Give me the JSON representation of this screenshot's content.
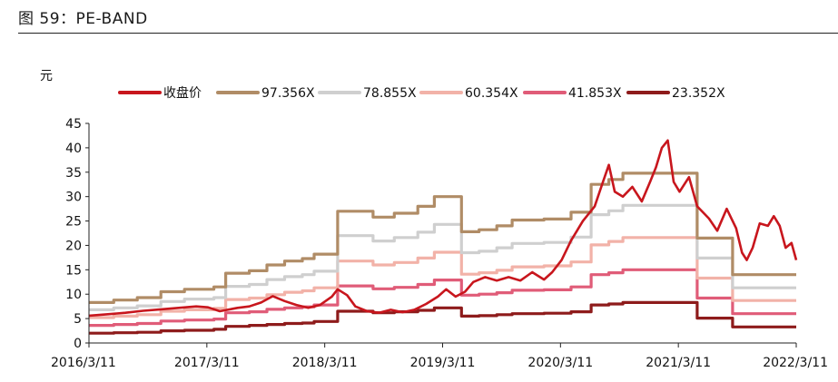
{
  "figure": {
    "title": "图 59：PE-BAND"
  },
  "chart_data": {
    "type": "line",
    "title": "图 59：PE-BAND",
    "ylabel": "元",
    "xlabel": "",
    "ylim": [
      0,
      45
    ],
    "yticks": [
      "0",
      "5",
      "10",
      "15",
      "20",
      "25",
      "30",
      "35",
      "40",
      "45"
    ],
    "xticks": [
      "2016/3/11",
      "2017/3/11",
      "2018/3/11",
      "2019/3/11",
      "2020/3/11",
      "2021/3/11",
      "2022/3/11"
    ],
    "xlim_years": [
      2016.19,
      2022.19
    ],
    "grid": false,
    "legend_position": "top",
    "series": [
      {
        "name": "收盘价",
        "color": "#c8161d",
        "points": [
          [
            2016.19,
            5.6
          ],
          [
            2016.35,
            5.9
          ],
          [
            2016.5,
            6.2
          ],
          [
            2016.65,
            6.6
          ],
          [
            2016.8,
            6.9
          ],
          [
            2016.95,
            7.2
          ],
          [
            2017.1,
            7.5
          ],
          [
            2017.2,
            7.3
          ],
          [
            2017.3,
            6.5
          ],
          [
            2017.45,
            7.2
          ],
          [
            2017.55,
            7.5
          ],
          [
            2017.65,
            8.3
          ],
          [
            2017.75,
            9.6
          ],
          [
            2017.85,
            8.6
          ],
          [
            2017.95,
            7.8
          ],
          [
            2018.05,
            7.2
          ],
          [
            2018.15,
            7.8
          ],
          [
            2018.25,
            9.5
          ],
          [
            2018.3,
            11.0
          ],
          [
            2018.38,
            9.8
          ],
          [
            2018.45,
            7.5
          ],
          [
            2018.55,
            6.5
          ],
          [
            2018.65,
            6.2
          ],
          [
            2018.75,
            6.8
          ],
          [
            2018.85,
            6.3
          ],
          [
            2018.95,
            6.8
          ],
          [
            2019.05,
            8.0
          ],
          [
            2019.15,
            9.5
          ],
          [
            2019.22,
            11.0
          ],
          [
            2019.3,
            9.5
          ],
          [
            2019.38,
            10.5
          ],
          [
            2019.45,
            12.5
          ],
          [
            2019.55,
            13.5
          ],
          [
            2019.65,
            12.8
          ],
          [
            2019.75,
            13.5
          ],
          [
            2019.85,
            12.8
          ],
          [
            2019.95,
            14.5
          ],
          [
            2020.05,
            13.0
          ],
          [
            2020.12,
            14.5
          ],
          [
            2020.2,
            17.0
          ],
          [
            2020.28,
            21.0
          ],
          [
            2020.38,
            25.0
          ],
          [
            2020.48,
            28.0
          ],
          [
            2020.55,
            33.0
          ],
          [
            2020.6,
            36.5
          ],
          [
            2020.65,
            31.0
          ],
          [
            2020.72,
            30.0
          ],
          [
            2020.8,
            32.0
          ],
          [
            2020.88,
            29.0
          ],
          [
            2020.95,
            33.0
          ],
          [
            2021.0,
            36.0
          ],
          [
            2021.05,
            40.0
          ],
          [
            2021.1,
            41.5
          ],
          [
            2021.15,
            33.0
          ],
          [
            2021.2,
            31.0
          ],
          [
            2021.28,
            34.0
          ],
          [
            2021.35,
            28.0
          ],
          [
            2021.45,
            25.5
          ],
          [
            2021.52,
            23.0
          ],
          [
            2021.6,
            27.5
          ],
          [
            2021.68,
            23.5
          ],
          [
            2021.73,
            18.5
          ],
          [
            2021.77,
            17.0
          ],
          [
            2021.82,
            19.5
          ],
          [
            2021.88,
            24.5
          ],
          [
            2021.95,
            24.0
          ],
          [
            2022.0,
            26.0
          ],
          [
            2022.05,
            24.0
          ],
          [
            2022.1,
            19.5
          ],
          [
            2022.15,
            20.5
          ],
          [
            2022.19,
            17.0
          ]
        ]
      },
      {
        "name": "97.356X",
        "color": "#b08c66",
        "steps": [
          [
            2016.19,
            8.3
          ],
          [
            2016.4,
            8.8
          ],
          [
            2016.6,
            9.3
          ],
          [
            2016.8,
            10.5
          ],
          [
            2017.0,
            11.0
          ],
          [
            2017.25,
            11.5
          ],
          [
            2017.35,
            14.3
          ],
          [
            2017.55,
            14.8
          ],
          [
            2017.7,
            16.0
          ],
          [
            2017.85,
            16.8
          ],
          [
            2018.0,
            17.3
          ],
          [
            2018.1,
            18.2
          ],
          [
            2018.3,
            27.0
          ],
          [
            2018.6,
            25.8
          ],
          [
            2018.78,
            26.6
          ],
          [
            2018.98,
            28.0
          ],
          [
            2019.12,
            30.0
          ],
          [
            2019.35,
            22.8
          ],
          [
            2019.5,
            23.2
          ],
          [
            2019.65,
            24.0
          ],
          [
            2019.78,
            25.2
          ],
          [
            2020.05,
            25.4
          ],
          [
            2020.28,
            26.8
          ],
          [
            2020.45,
            32.5
          ],
          [
            2020.6,
            33.5
          ],
          [
            2020.72,
            34.8
          ],
          [
            2021.35,
            21.5
          ],
          [
            2021.65,
            14.0
          ]
        ],
        "end": 2022.19
      },
      {
        "name": "78.855X",
        "color": "#cfcfcf",
        "steps": [
          [
            2016.19,
            6.8
          ],
          [
            2016.4,
            7.2
          ],
          [
            2016.6,
            7.6
          ],
          [
            2016.8,
            8.5
          ],
          [
            2017.0,
            9.0
          ],
          [
            2017.25,
            9.3
          ],
          [
            2017.35,
            11.6
          ],
          [
            2017.55,
            12.0
          ],
          [
            2017.7,
            13.0
          ],
          [
            2017.85,
            13.6
          ],
          [
            2018.0,
            14.0
          ],
          [
            2018.1,
            14.7
          ],
          [
            2018.3,
            22.0
          ],
          [
            2018.6,
            20.9
          ],
          [
            2018.78,
            21.6
          ],
          [
            2018.98,
            22.7
          ],
          [
            2019.12,
            24.3
          ],
          [
            2019.35,
            18.5
          ],
          [
            2019.5,
            18.8
          ],
          [
            2019.65,
            19.5
          ],
          [
            2019.78,
            20.4
          ],
          [
            2020.05,
            20.6
          ],
          [
            2020.28,
            21.7
          ],
          [
            2020.45,
            26.3
          ],
          [
            2020.6,
            27.1
          ],
          [
            2020.72,
            28.2
          ],
          [
            2021.35,
            17.4
          ],
          [
            2021.65,
            11.3
          ]
        ],
        "end": 2022.19
      },
      {
        "name": "60.354X",
        "color": "#f2b2a8",
        "steps": [
          [
            2016.19,
            5.2
          ],
          [
            2016.4,
            5.5
          ],
          [
            2016.6,
            5.8
          ],
          [
            2016.8,
            6.5
          ],
          [
            2017.0,
            6.8
          ],
          [
            2017.25,
            7.1
          ],
          [
            2017.35,
            8.9
          ],
          [
            2017.55,
            9.2
          ],
          [
            2017.7,
            9.9
          ],
          [
            2017.85,
            10.4
          ],
          [
            2018.0,
            10.7
          ],
          [
            2018.1,
            11.3
          ],
          [
            2018.3,
            16.8
          ],
          [
            2018.6,
            16.0
          ],
          [
            2018.78,
            16.5
          ],
          [
            2018.98,
            17.4
          ],
          [
            2019.12,
            18.6
          ],
          [
            2019.35,
            14.1
          ],
          [
            2019.5,
            14.4
          ],
          [
            2019.65,
            14.9
          ],
          [
            2019.78,
            15.6
          ],
          [
            2020.05,
            15.8
          ],
          [
            2020.28,
            16.6
          ],
          [
            2020.45,
            20.1
          ],
          [
            2020.6,
            20.8
          ],
          [
            2020.72,
            21.6
          ],
          [
            2021.35,
            13.3
          ],
          [
            2021.65,
            8.7
          ]
        ],
        "end": 2022.19
      },
      {
        "name": "41.853X",
        "color": "#e05c78",
        "steps": [
          [
            2016.19,
            3.6
          ],
          [
            2016.4,
            3.8
          ],
          [
            2016.6,
            4.0
          ],
          [
            2016.8,
            4.5
          ],
          [
            2017.0,
            4.7
          ],
          [
            2017.25,
            4.9
          ],
          [
            2017.35,
            6.2
          ],
          [
            2017.55,
            6.4
          ],
          [
            2017.7,
            6.9
          ],
          [
            2017.85,
            7.2
          ],
          [
            2018.0,
            7.4
          ],
          [
            2018.1,
            7.8
          ],
          [
            2018.3,
            11.7
          ],
          [
            2018.6,
            11.1
          ],
          [
            2018.78,
            11.4
          ],
          [
            2018.98,
            12.0
          ],
          [
            2019.12,
            12.9
          ],
          [
            2019.35,
            9.8
          ],
          [
            2019.5,
            10.0
          ],
          [
            2019.65,
            10.3
          ],
          [
            2019.78,
            10.8
          ],
          [
            2020.05,
            10.9
          ],
          [
            2020.28,
            11.5
          ],
          [
            2020.45,
            14.0
          ],
          [
            2020.6,
            14.4
          ],
          [
            2020.72,
            15.0
          ],
          [
            2021.35,
            9.2
          ],
          [
            2021.65,
            6.0
          ]
        ],
        "end": 2022.19
      },
      {
        "name": "23.352X",
        "color": "#8e1b1b",
        "steps": [
          [
            2016.19,
            2.0
          ],
          [
            2016.4,
            2.1
          ],
          [
            2016.6,
            2.2
          ],
          [
            2016.8,
            2.5
          ],
          [
            2017.0,
            2.6
          ],
          [
            2017.25,
            2.8
          ],
          [
            2017.35,
            3.4
          ],
          [
            2017.55,
            3.6
          ],
          [
            2017.7,
            3.8
          ],
          [
            2017.85,
            4.0
          ],
          [
            2018.0,
            4.1
          ],
          [
            2018.1,
            4.4
          ],
          [
            2018.3,
            6.5
          ],
          [
            2018.6,
            6.2
          ],
          [
            2018.78,
            6.4
          ],
          [
            2018.98,
            6.7
          ],
          [
            2019.12,
            7.2
          ],
          [
            2019.35,
            5.5
          ],
          [
            2019.5,
            5.6
          ],
          [
            2019.65,
            5.8
          ],
          [
            2019.78,
            6.0
          ],
          [
            2020.05,
            6.1
          ],
          [
            2020.28,
            6.4
          ],
          [
            2020.45,
            7.8
          ],
          [
            2020.6,
            8.0
          ],
          [
            2020.72,
            8.3
          ],
          [
            2021.35,
            5.1
          ],
          [
            2021.65,
            3.3
          ]
        ],
        "end": 2022.19
      }
    ]
  }
}
